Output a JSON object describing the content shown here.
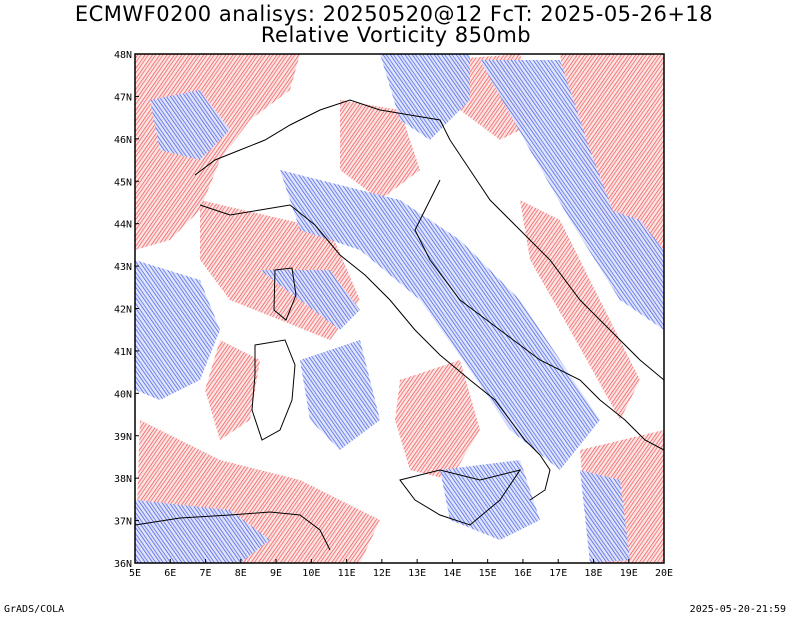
{
  "title_line1": "ECMWF0200 analisys: 20250520@12 FcT: 2025-05-26+18",
  "title_line2": "Relative Vorticity 850mb",
  "footer_left": "GrADS/COLA",
  "footer_right": "2025-05-20-21:59",
  "map": {
    "lon_range": [
      5,
      20
    ],
    "lat_range": [
      36,
      48
    ],
    "lon_labels": [
      "5E",
      "6E",
      "7E",
      "8E",
      "9E",
      "10E",
      "11E",
      "12E",
      "13E",
      "14E",
      "15E",
      "16E",
      "17E",
      "18E",
      "19E",
      "20E"
    ],
    "lat_labels": [
      "36N",
      "37N",
      "38N",
      "39N",
      "40N",
      "41N",
      "42N",
      "43N",
      "44N",
      "45N",
      "46N",
      "47N",
      "48N"
    ],
    "colors": {
      "positive": "#f04040",
      "negative": "#2f4de6",
      "coast": "#000000"
    }
  }
}
